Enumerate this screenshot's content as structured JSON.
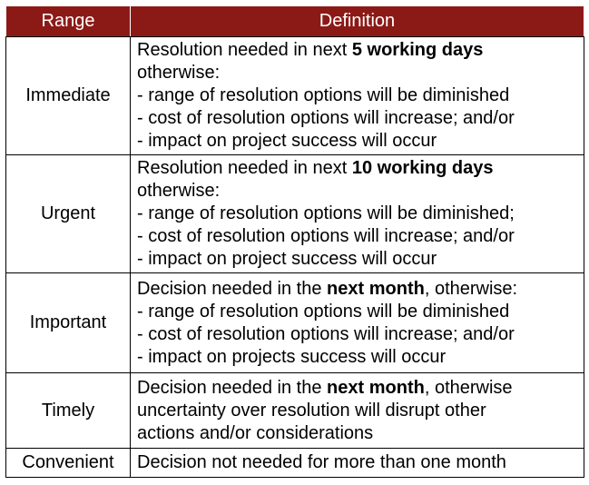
{
  "header": {
    "range": "Range",
    "definition": "Definition",
    "background": "#8b1a17"
  },
  "rows": [
    {
      "range": "Immediate",
      "lines": [
        {
          "pre": "Resolution needed in next ",
          "bold": "5 working days",
          "post": ""
        },
        {
          "pre": "otherwise:",
          "bold": "",
          "post": ""
        },
        {
          "pre": "- range of resolution options will be diminished",
          "bold": "",
          "post": ""
        },
        {
          "pre": "- cost of resolution options will increase; and/or",
          "bold": "",
          "post": ""
        },
        {
          "pre": "- impact on project success will occur",
          "bold": "",
          "post": ""
        }
      ]
    },
    {
      "range": "Urgent",
      "lines": [
        {
          "pre": "Resolution needed in next ",
          "bold": "10 working days",
          "post": ""
        },
        {
          "pre": "otherwise:",
          "bold": "",
          "post": ""
        },
        {
          "pre": "- range of resolution options will be diminished;",
          "bold": "",
          "post": ""
        },
        {
          "pre": "- cost of resolution options will increase; and/or",
          "bold": "",
          "post": ""
        },
        {
          "pre": "- impact on project success will occur",
          "bold": "",
          "post": ""
        }
      ]
    },
    {
      "range": "Important",
      "lines": [
        {
          "pre": "Decision needed in the ",
          "bold": "next month",
          "post": ", otherwise:"
        },
        {
          "pre": "- range of resolution options will be diminished",
          "bold": "",
          "post": ""
        },
        {
          "pre": "- cost of resolution options will increase; and/or",
          "bold": "",
          "post": ""
        },
        {
          "pre": "- impact on projects success will occur",
          "bold": "",
          "post": ""
        }
      ]
    },
    {
      "range": "Timely",
      "lines": [
        {
          "pre": "Decision needed in the ",
          "bold": "next month",
          "post": ", otherwise"
        },
        {
          "pre": "uncertainty over resolution will disrupt other",
          "bold": "",
          "post": ""
        },
        {
          "pre": "actions and/or considerations",
          "bold": "",
          "post": ""
        }
      ]
    },
    {
      "range": "Convenient",
      "lines": [
        {
          "pre": "Decision not needed for more than one month",
          "bold": "",
          "post": ""
        }
      ]
    }
  ]
}
